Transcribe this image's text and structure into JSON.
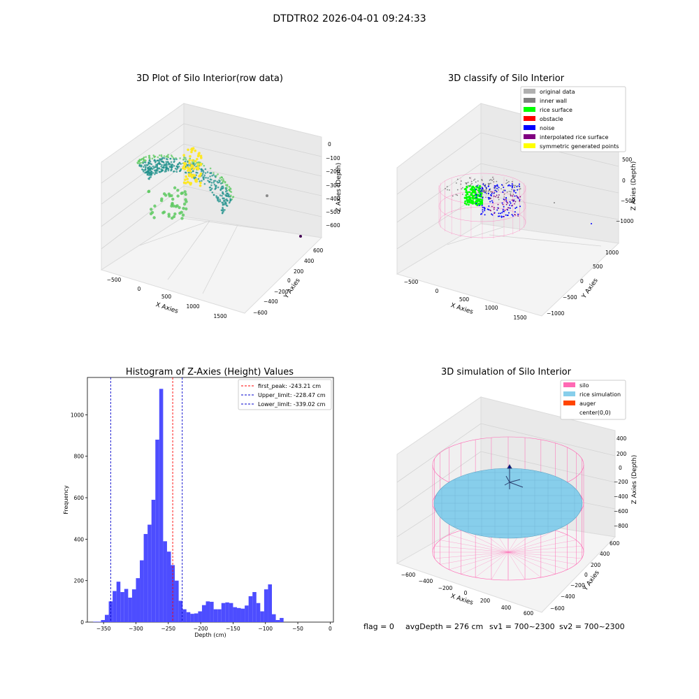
{
  "figure": {
    "title": "DTDTR02 2026-04-01 09:24:33",
    "footer": {
      "flag": "flag = 0",
      "avg_depth": "avgDepth = 276 cm",
      "sv1": "sv1 = 700~2300",
      "sv2": "sv2 = 700~2300"
    }
  },
  "chart_data": [
    {
      "type": "scatter",
      "title": "3D Plot of Silo Interior(row data)",
      "xlabel": "X Axies",
      "ylabel": "Y Axies",
      "zlabel": "Z Axies (Depth)",
      "x_ticks": [
        "−500",
        "0",
        "500",
        "1000",
        "1500"
      ],
      "y_ticks": [
        "600",
        "400",
        "200",
        "0",
        "−200",
        "−400",
        "−600"
      ],
      "z_ticks": [
        "0",
        "−100",
        "−200",
        "−300",
        "−400",
        "−500",
        "−600"
      ],
      "colormap": [
        "#440154",
        "#21918c",
        "#5ec962",
        "#fde725"
      ]
    },
    {
      "type": "scatter",
      "title": "3D classify of Silo Interior",
      "xlabel": "X Axies",
      "ylabel": "Y Axies",
      "zlabel": "Z Axies (Depth)",
      "x_ticks": [
        "−500",
        "0",
        "500",
        "1000",
        "1500"
      ],
      "y_ticks": [
        "1000",
        "500",
        "0",
        "−500",
        "−1000"
      ],
      "z_ticks": [
        "500",
        "0",
        "−500",
        "−1000"
      ],
      "legend_position": "top-right",
      "legend": [
        {
          "label": "original data",
          "color": "#b0b0b0"
        },
        {
          "label": "inner wall",
          "color": "#808080"
        },
        {
          "label": "rice surface",
          "color": "#00ff00"
        },
        {
          "label": "obstacle",
          "color": "#ff0000"
        },
        {
          "label": "noise",
          "color": "#0000ff"
        },
        {
          "label": "interpolated rice surface",
          "color": "#800080"
        },
        {
          "label": "symmetric generated points",
          "color": "#ffff00"
        }
      ]
    },
    {
      "type": "bar",
      "title": "Histogram of Z-Axies (Height) Values",
      "xlabel": "Depth (cm)",
      "ylabel": "Frequency",
      "xlim": [
        -375,
        5
      ],
      "ylim": [
        0,
        1180
      ],
      "x_ticks": [
        {
          "v": -350,
          "label": "−350"
        },
        {
          "v": -300,
          "label": "−300"
        },
        {
          "v": -250,
          "label": "−250"
        },
        {
          "v": -200,
          "label": "−200"
        },
        {
          "v": -150,
          "label": "−150"
        },
        {
          "v": -100,
          "label": "−100"
        },
        {
          "v": -50,
          "label": "−50"
        },
        {
          "v": 0,
          "label": "0"
        }
      ],
      "y_ticks": [
        {
          "v": 0,
          "label": "0"
        },
        {
          "v": 200,
          "label": "200"
        },
        {
          "v": 400,
          "label": "400"
        },
        {
          "v": 600,
          "label": "600"
        },
        {
          "v": 800,
          "label": "800"
        },
        {
          "v": 1000,
          "label": "1000"
        }
      ],
      "bar_color": "#4d4dff",
      "bin_start": -366,
      "bin_width": 6,
      "values": [
        2,
        2,
        10,
        35,
        100,
        150,
        195,
        145,
        160,
        118,
        158,
        212,
        298,
        425,
        470,
        590,
        880,
        1125,
        390,
        340,
        275,
        200,
        103,
        62,
        48,
        40,
        42,
        52,
        82,
        100,
        98,
        62,
        62,
        92,
        95,
        92,
        72,
        68,
        65,
        80,
        125,
        145,
        92,
        52,
        158,
        182,
        38,
        10,
        20
      ],
      "legend_position": "top-right",
      "reference_lines": [
        {
          "label": "first_peak: -243.21 cm",
          "x": -243.21,
          "color": "#ff0000"
        },
        {
          "label": "Upper_limit: -228.47 cm",
          "x": -228.47,
          "color": "#0000cc"
        },
        {
          "label": "Lower_limit: -339.02 cm",
          "x": -339.02,
          "color": "#0000cc"
        }
      ]
    },
    {
      "type": "scatter",
      "title": "3D simulation of Silo Interior",
      "xlabel": "X Axies",
      "ylabel": "Y Axies",
      "zlabel": "Z Axies (Depth)",
      "x_ticks": [
        "−600",
        "−400",
        "−200",
        "0",
        "200",
        "400",
        "600"
      ],
      "y_ticks": [
        "600",
        "400",
        "200",
        "0",
        "−200",
        "−400",
        "−600"
      ],
      "z_ticks": [
        "400",
        "200",
        "0",
        "−200",
        "−400",
        "−600",
        "−800"
      ],
      "legend_position": "top-right",
      "legend": [
        {
          "label": "silo",
          "color": "#ff69b4"
        },
        {
          "label": "rice simulation",
          "color": "#87ceeb"
        },
        {
          "label": "auger",
          "color": "#ff4500"
        },
        {
          "label": "center(0,0)",
          "color": "#ffffff"
        }
      ]
    }
  ]
}
